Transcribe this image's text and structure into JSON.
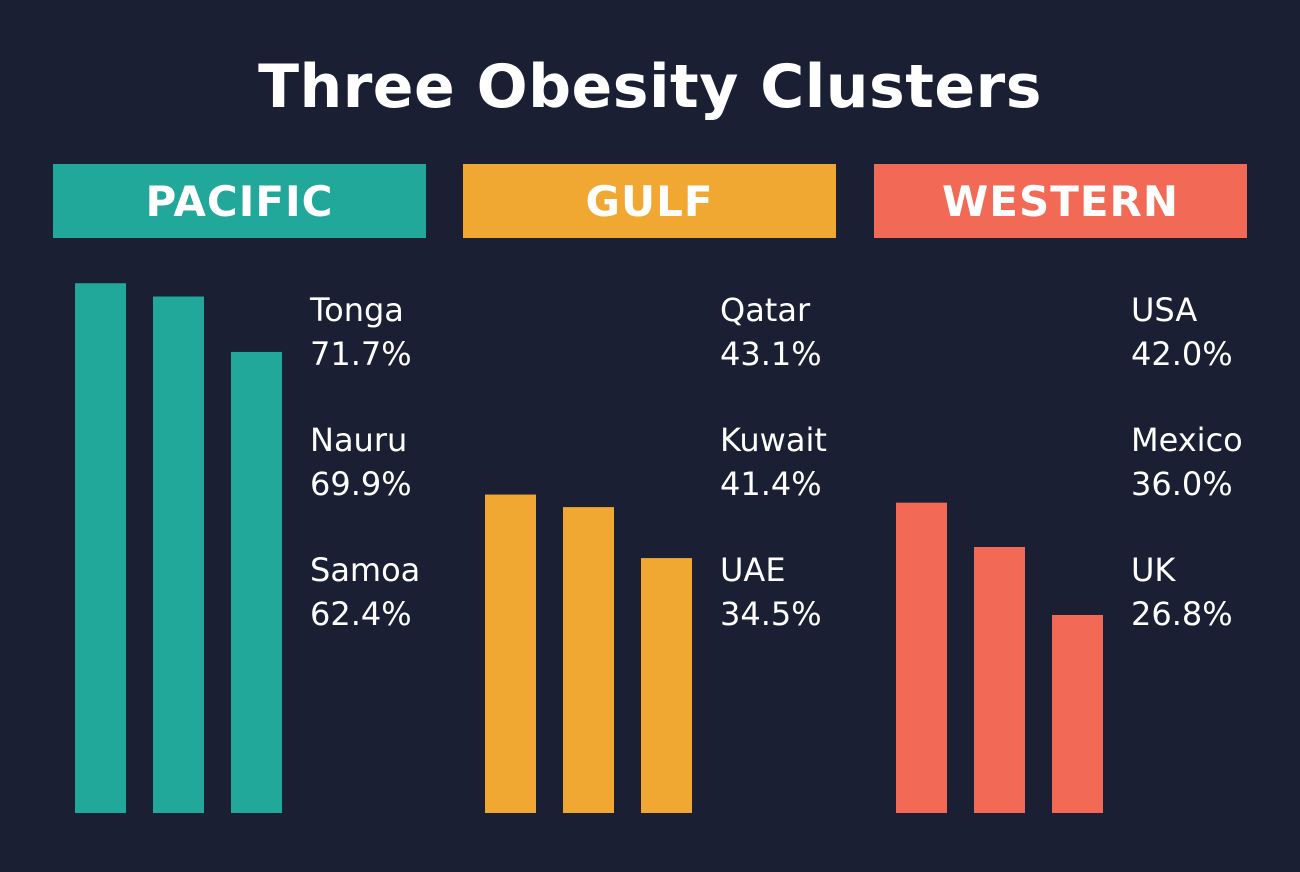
{
  "chart_data": {
    "type": "bar",
    "title": "Three Obesity Clusters",
    "unit": "%",
    "ylim": [
      0,
      72
    ],
    "groups": [
      {
        "name": "PACIFIC",
        "color": "#21a89b",
        "categories": [
          "Tonga",
          "Nauru",
          "Samoa"
        ],
        "values": [
          71.7,
          69.9,
          62.4
        ],
        "value_labels": [
          "71.7%",
          "69.9%",
          "62.4%"
        ]
      },
      {
        "name": "GULF",
        "color": "#f0a832",
        "categories": [
          "Qatar",
          "Kuwait",
          "UAE"
        ],
        "values": [
          43.1,
          41.4,
          34.5
        ],
        "value_labels": [
          "43.1%",
          "41.4%",
          "34.5%"
        ]
      },
      {
        "name": "WESTERN",
        "color": "#f26a55",
        "categories": [
          "USA",
          "Mexico",
          "UK"
        ],
        "values": [
          42.0,
          36.0,
          26.8
        ],
        "value_labels": [
          "42.0%",
          "36.0%",
          "26.8%"
        ]
      }
    ]
  }
}
